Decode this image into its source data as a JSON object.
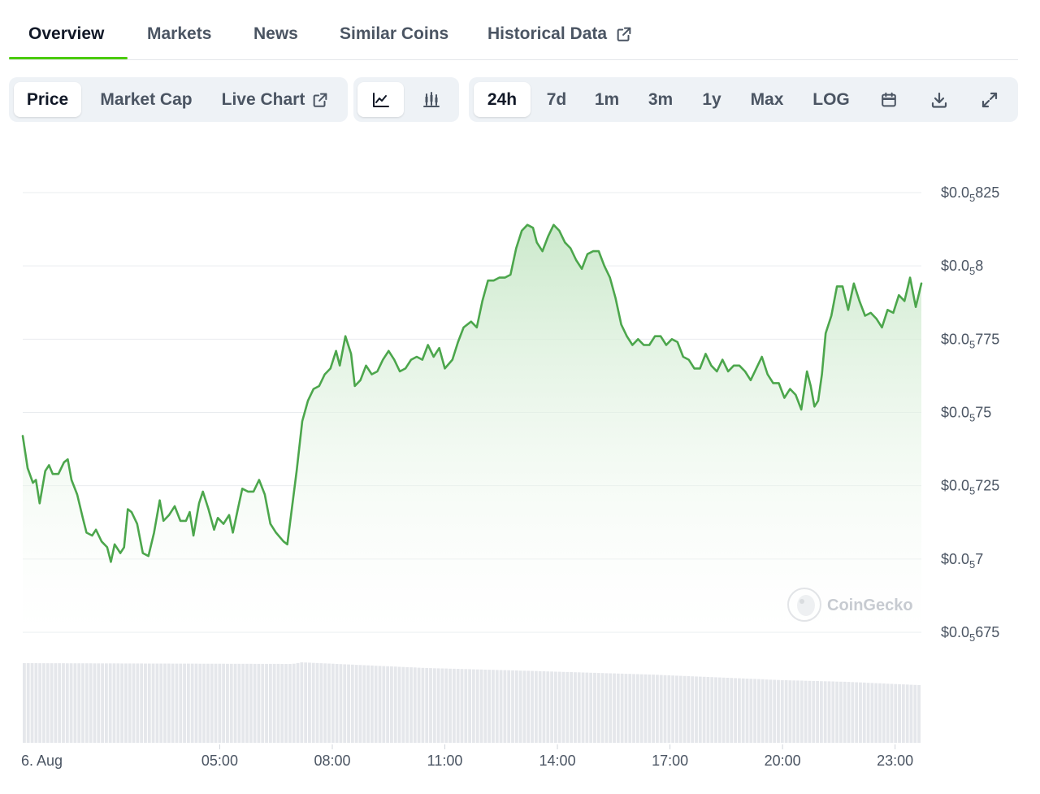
{
  "tabs": [
    {
      "label": "Overview",
      "active": true
    },
    {
      "label": "Markets",
      "active": false
    },
    {
      "label": "News",
      "active": false
    },
    {
      "label": "Similar Coins",
      "active": false
    },
    {
      "label": "Historical Data",
      "active": false,
      "external": true
    }
  ],
  "toolbar": {
    "view": {
      "price": "Price",
      "market_cap": "Market Cap",
      "live_chart": "Live Chart",
      "active": "Price"
    },
    "chart_style": {
      "line_icon": "line-chart-icon",
      "candle_icon": "candlestick-icon",
      "active": "line"
    },
    "ranges": {
      "r24h": "24h",
      "r7d": "7d",
      "r1m": "1m",
      "r3m": "3m",
      "r1y": "1y",
      "max": "Max",
      "log": "LOG",
      "active": "24h"
    },
    "icons": {
      "calendar": "calendar-icon",
      "download": "download-icon",
      "expand": "expand-icon"
    }
  },
  "watermark": "CoinGecko",
  "colors": {
    "line": "#4ca64c",
    "fill_top": "#c9e8c9",
    "accent_underline": "#4bcc00",
    "grid": "#e9ecef",
    "volume": "#e5e7eb"
  },
  "chart_data": {
    "type": "line",
    "title": "",
    "xlabel": "",
    "ylabel": "",
    "y_tick_labels": [
      {
        "prefix": "$0.0",
        "sub": "5",
        "suffix": "825",
        "value": 8.25e-07
      },
      {
        "prefix": "$0.0",
        "sub": "5",
        "suffix": "8",
        "value": 8e-07
      },
      {
        "prefix": "$0.0",
        "sub": "5",
        "suffix": "775",
        "value": 7.75e-07
      },
      {
        "prefix": "$0.0",
        "sub": "5",
        "suffix": "75",
        "value": 7.5e-07
      },
      {
        "prefix": "$0.0",
        "sub": "5",
        "suffix": "725",
        "value": 7.25e-07
      },
      {
        "prefix": "$0.0",
        "sub": "5",
        "suffix": "7",
        "value": 7e-07
      },
      {
        "prefix": "$0.0",
        "sub": "5",
        "suffix": "675",
        "value": 6.75e-07
      }
    ],
    "y_unit_note": "values expressed in units of 1e-8 USD",
    "ylim": [
      67.5,
      82.5
    ],
    "x_tick_labels": [
      {
        "label": "6. Aug",
        "hour": 0
      },
      {
        "label": "05:00",
        "hour": 5
      },
      {
        "label": "08:00",
        "hour": 8
      },
      {
        "label": "11:00",
        "hour": 11
      },
      {
        "label": "14:00",
        "hour": 14
      },
      {
        "label": "17:00",
        "hour": 17
      },
      {
        "label": "20:00",
        "hour": 20
      },
      {
        "label": "23:00",
        "hour": 23
      }
    ],
    "xlim_hours": [
      -0.25,
      23.7
    ],
    "grid": true,
    "series": [
      {
        "points": [
          [
            -0.25,
            74.2
          ],
          [
            -0.12,
            73.1
          ],
          [
            0.02,
            72.6
          ],
          [
            0.1,
            72.7
          ],
          [
            0.2,
            71.9
          ],
          [
            0.35,
            73.0
          ],
          [
            0.45,
            73.2
          ],
          [
            0.55,
            72.9
          ],
          [
            0.7,
            72.9
          ],
          [
            0.85,
            73.3
          ],
          [
            0.95,
            73.4
          ],
          [
            1.05,
            72.7
          ],
          [
            1.2,
            72.2
          ],
          [
            1.35,
            71.4
          ],
          [
            1.45,
            70.9
          ],
          [
            1.6,
            70.8
          ],
          [
            1.7,
            71.0
          ],
          [
            1.85,
            70.6
          ],
          [
            2.0,
            70.4
          ],
          [
            2.1,
            69.9
          ],
          [
            2.2,
            70.5
          ],
          [
            2.35,
            70.2
          ],
          [
            2.45,
            70.4
          ],
          [
            2.55,
            71.7
          ],
          [
            2.65,
            71.6
          ],
          [
            2.8,
            71.2
          ],
          [
            2.95,
            70.2
          ],
          [
            3.1,
            70.1
          ],
          [
            3.25,
            70.9
          ],
          [
            3.4,
            72.0
          ],
          [
            3.5,
            71.3
          ],
          [
            3.65,
            71.5
          ],
          [
            3.8,
            71.8
          ],
          [
            3.95,
            71.3
          ],
          [
            4.1,
            71.3
          ],
          [
            4.2,
            71.6
          ],
          [
            4.3,
            70.8
          ],
          [
            4.45,
            71.9
          ],
          [
            4.55,
            72.3
          ],
          [
            4.7,
            71.7
          ],
          [
            4.85,
            71.0
          ],
          [
            4.95,
            71.4
          ],
          [
            5.1,
            71.2
          ],
          [
            5.25,
            71.5
          ],
          [
            5.35,
            70.9
          ],
          [
            5.5,
            71.8
          ],
          [
            5.6,
            72.4
          ],
          [
            5.75,
            72.3
          ],
          [
            5.9,
            72.3
          ],
          [
            6.05,
            72.7
          ],
          [
            6.2,
            72.2
          ],
          [
            6.35,
            71.2
          ],
          [
            6.5,
            70.9
          ],
          [
            6.7,
            70.6
          ],
          [
            6.8,
            70.5
          ],
          [
            6.95,
            72.0
          ],
          [
            7.05,
            73.0
          ],
          [
            7.2,
            74.7
          ],
          [
            7.35,
            75.4
          ],
          [
            7.5,
            75.8
          ],
          [
            7.65,
            75.9
          ],
          [
            7.8,
            76.3
          ],
          [
            7.95,
            76.5
          ],
          [
            8.1,
            77.1
          ],
          [
            8.2,
            76.6
          ],
          [
            8.35,
            77.6
          ],
          [
            8.5,
            77.0
          ],
          [
            8.6,
            75.9
          ],
          [
            8.75,
            76.1
          ],
          [
            8.9,
            76.6
          ],
          [
            9.05,
            76.3
          ],
          [
            9.2,
            76.4
          ],
          [
            9.35,
            76.8
          ],
          [
            9.5,
            77.1
          ],
          [
            9.65,
            76.8
          ],
          [
            9.8,
            76.4
          ],
          [
            9.95,
            76.5
          ],
          [
            10.1,
            76.8
          ],
          [
            10.25,
            76.9
          ],
          [
            10.4,
            76.8
          ],
          [
            10.55,
            77.3
          ],
          [
            10.7,
            76.9
          ],
          [
            10.85,
            77.2
          ],
          [
            11.0,
            76.5
          ],
          [
            11.2,
            76.8
          ],
          [
            11.35,
            77.4
          ],
          [
            11.5,
            77.9
          ],
          [
            11.7,
            78.1
          ],
          [
            11.85,
            77.9
          ],
          [
            12.0,
            78.8
          ],
          [
            12.15,
            79.5
          ],
          [
            12.3,
            79.5
          ],
          [
            12.45,
            79.6
          ],
          [
            12.6,
            79.6
          ],
          [
            12.75,
            79.7
          ],
          [
            12.9,
            80.6
          ],
          [
            13.05,
            81.2
          ],
          [
            13.2,
            81.4
          ],
          [
            13.35,
            81.3
          ],
          [
            13.45,
            80.8
          ],
          [
            13.6,
            80.5
          ],
          [
            13.75,
            81.0
          ],
          [
            13.9,
            81.4
          ],
          [
            14.05,
            81.2
          ],
          [
            14.2,
            80.8
          ],
          [
            14.35,
            80.6
          ],
          [
            14.5,
            80.2
          ],
          [
            14.65,
            79.9
          ],
          [
            14.8,
            80.4
          ],
          [
            14.95,
            80.5
          ],
          [
            15.1,
            80.5
          ],
          [
            15.25,
            80.0
          ],
          [
            15.4,
            79.6
          ],
          [
            15.55,
            78.9
          ],
          [
            15.7,
            78.0
          ],
          [
            15.85,
            77.6
          ],
          [
            16.0,
            77.3
          ],
          [
            16.15,
            77.5
          ],
          [
            16.3,
            77.3
          ],
          [
            16.45,
            77.3
          ],
          [
            16.6,
            77.6
          ],
          [
            16.75,
            77.6
          ],
          [
            16.9,
            77.3
          ],
          [
            17.05,
            77.5
          ],
          [
            17.2,
            77.4
          ],
          [
            17.35,
            76.9
          ],
          [
            17.5,
            76.8
          ],
          [
            17.65,
            76.5
          ],
          [
            17.8,
            76.5
          ],
          [
            17.95,
            77.0
          ],
          [
            18.1,
            76.6
          ],
          [
            18.25,
            76.4
          ],
          [
            18.4,
            76.8
          ],
          [
            18.55,
            76.4
          ],
          [
            18.7,
            76.6
          ],
          [
            18.85,
            76.6
          ],
          [
            19.0,
            76.4
          ],
          [
            19.15,
            76.1
          ],
          [
            19.3,
            76.5
          ],
          [
            19.45,
            76.9
          ],
          [
            19.6,
            76.3
          ],
          [
            19.75,
            76.0
          ],
          [
            19.9,
            76.0
          ],
          [
            20.05,
            75.5
          ],
          [
            20.2,
            75.8
          ],
          [
            20.35,
            75.6
          ],
          [
            20.5,
            75.1
          ],
          [
            20.65,
            76.4
          ],
          [
            20.75,
            75.9
          ],
          [
            20.85,
            75.2
          ],
          [
            20.95,
            75.4
          ],
          [
            21.05,
            76.3
          ],
          [
            21.15,
            77.7
          ],
          [
            21.3,
            78.3
          ],
          [
            21.45,
            79.3
          ],
          [
            21.6,
            79.3
          ],
          [
            21.75,
            78.5
          ],
          [
            21.9,
            79.4
          ],
          [
            22.05,
            78.8
          ],
          [
            22.2,
            78.3
          ],
          [
            22.35,
            78.4
          ],
          [
            22.5,
            78.2
          ],
          [
            22.65,
            77.9
          ],
          [
            22.8,
            78.5
          ],
          [
            22.95,
            78.4
          ],
          [
            23.1,
            79.0
          ],
          [
            23.25,
            78.8
          ],
          [
            23.4,
            79.6
          ],
          [
            23.55,
            78.6
          ],
          [
            23.7,
            79.4
          ]
        ]
      }
    ],
    "volume_bars": {
      "count": 230,
      "relative_heights": [
        [
          0.0,
          0.98
        ],
        [
          0.3,
          0.97
        ],
        [
          0.31,
          0.99
        ],
        [
          0.33,
          0.98
        ],
        [
          0.45,
          0.92
        ],
        [
          0.55,
          0.89
        ],
        [
          0.7,
          0.84
        ],
        [
          0.85,
          0.77
        ],
        [
          0.92,
          0.75
        ],
        [
          1.0,
          0.71
        ]
      ]
    }
  }
}
